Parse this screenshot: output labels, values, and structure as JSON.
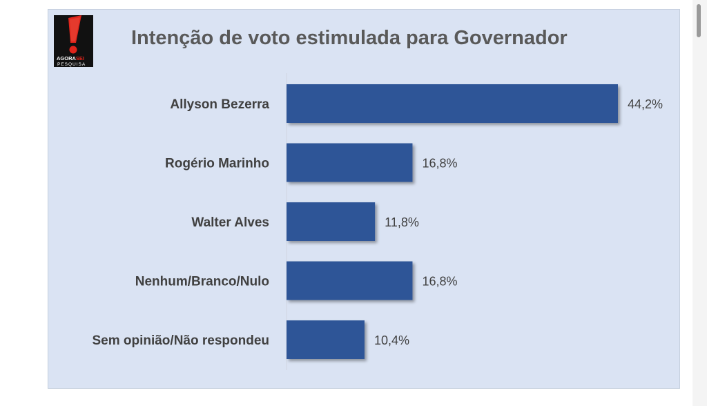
{
  "logo": {
    "line1_a": "AGORA",
    "line1_b": "SEI",
    "line2": "PESQUISA"
  },
  "colors": {
    "bar": "#2f5597",
    "chart_background": "#dae3f3",
    "title": "#595959",
    "logo_red": "#e0241b"
  },
  "chart_data": {
    "type": "bar",
    "orientation": "horizontal",
    "title": "Intenção de voto estimulada para Governador",
    "categories": [
      "Allyson Bezerra",
      "Rogério Marinho",
      "Walter Alves",
      "Nenhum/Branco/Nulo",
      "Sem opinião/Não respondeu"
    ],
    "values": [
      44.2,
      16.8,
      11.8,
      16.8,
      10.4
    ],
    "value_labels": [
      "44,2%",
      "16,8%",
      "11,8%",
      "16,8%",
      "10,4%"
    ],
    "xlim": [
      0,
      44.2
    ],
    "grid": false,
    "legend": "none"
  }
}
